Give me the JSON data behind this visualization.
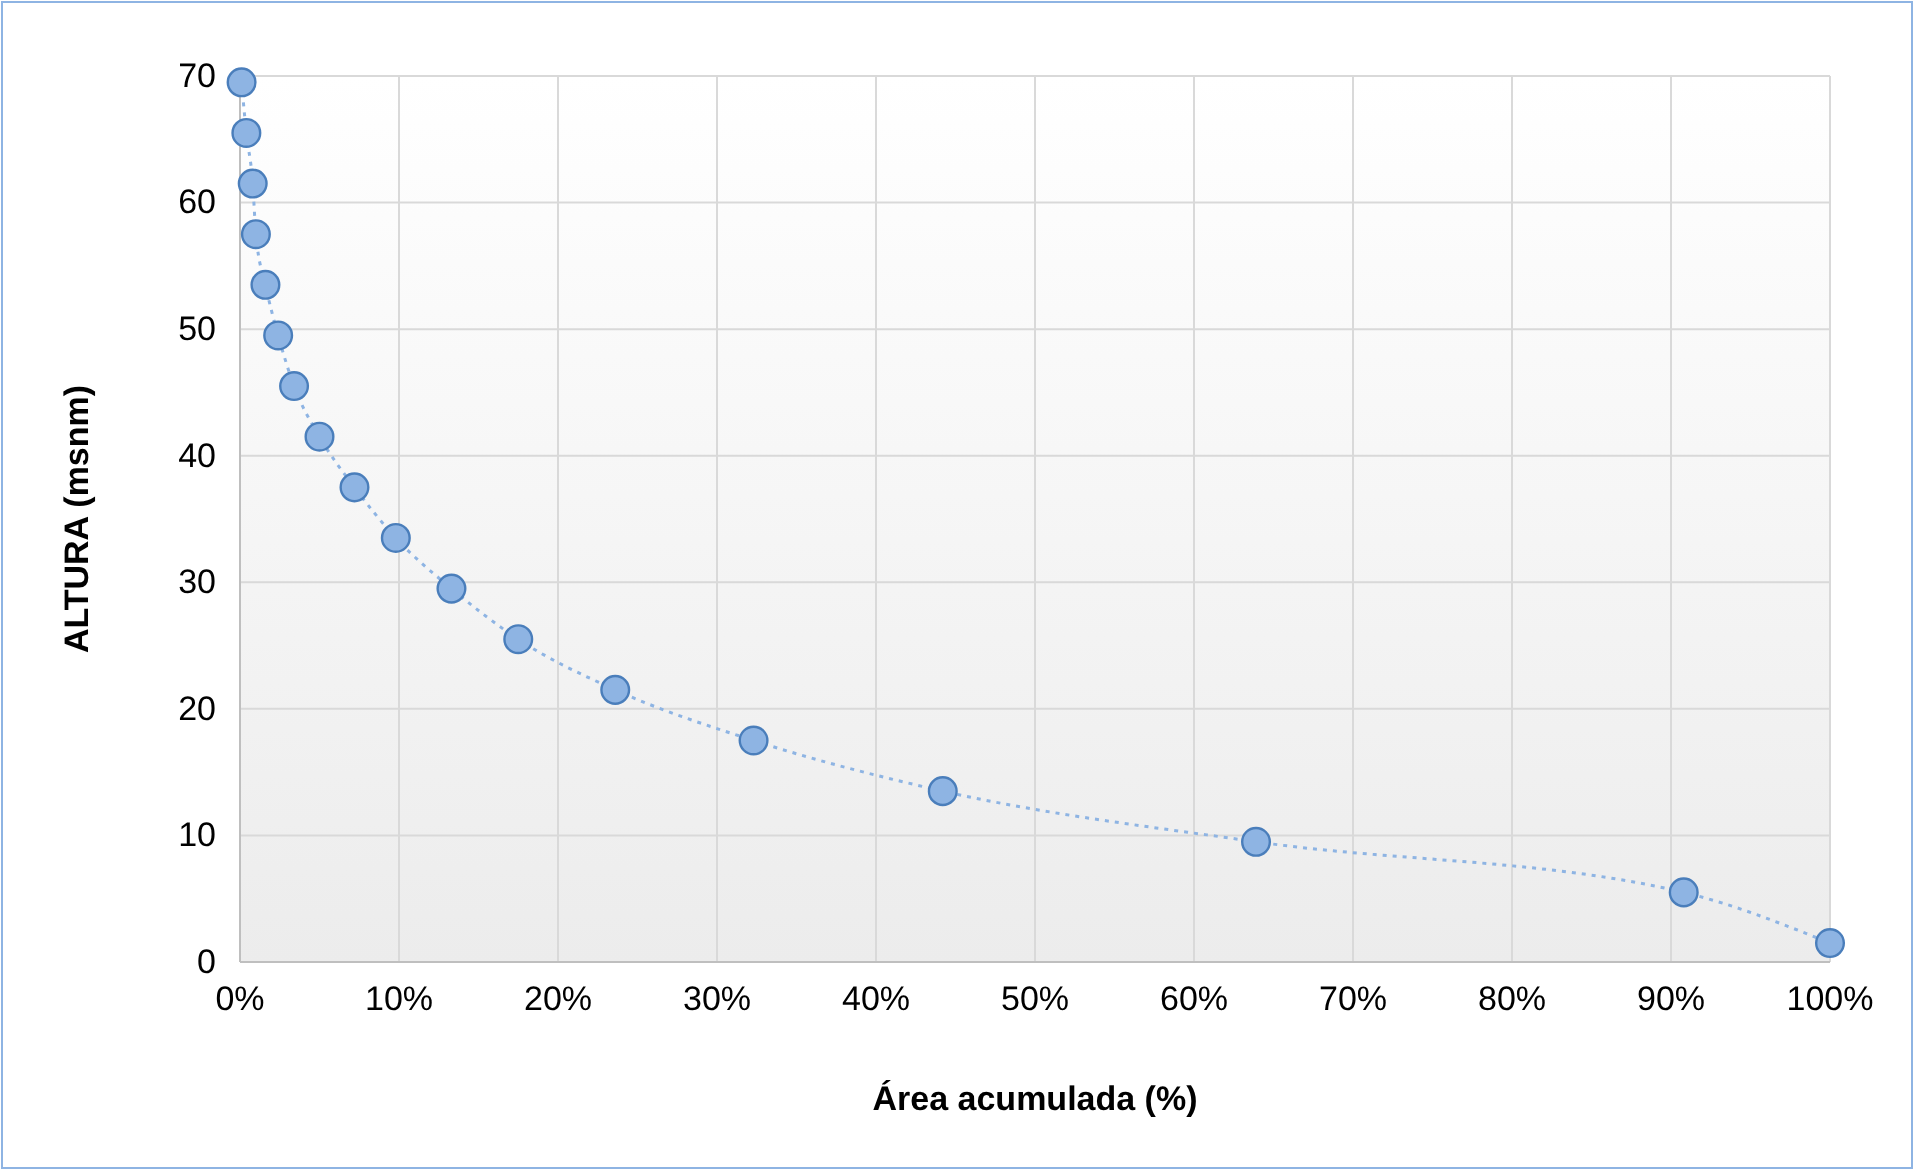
{
  "chart_data": {
    "type": "line",
    "xlabel": "Área acumulada (%)",
    "ylabel": "ALTURA (msnm)",
    "x": [
      0.1,
      0.4,
      0.8,
      1.0,
      1.6,
      2.4,
      3.4,
      5.0,
      7.2,
      9.8,
      13.3,
      17.5,
      23.6,
      32.3,
      44.2,
      63.9,
      90.8,
      100
    ],
    "series": [
      {
        "color": "#8eb4e3",
        "values": [
          69.5,
          65.5,
          61.5,
          57.5,
          53.5,
          49.5,
          45.5,
          41.5,
          37.5,
          33.5,
          29.5,
          25.5,
          21.5,
          17.5,
          13.5,
          9.5,
          5.5,
          1.5
        ]
      }
    ],
    "xlim": [
      0,
      100
    ],
    "ylim": [
      0,
      70
    ],
    "xticks": [
      {
        "value": 0,
        "label": "0%"
      },
      {
        "value": 10,
        "label": "10%"
      },
      {
        "value": 20,
        "label": "20%"
      },
      {
        "value": 30,
        "label": "30%"
      },
      {
        "value": 40,
        "label": "40%"
      },
      {
        "value": 50,
        "label": "50%"
      },
      {
        "value": 60,
        "label": "60%"
      },
      {
        "value": 70,
        "label": "70%"
      },
      {
        "value": 80,
        "label": "80%"
      },
      {
        "value": 90,
        "label": "90%"
      },
      {
        "value": 100,
        "label": "100%"
      }
    ],
    "yticks": [
      0,
      10,
      20,
      30,
      40,
      50,
      60,
      70
    ],
    "grid": true,
    "marker": "circle",
    "line_style": "dotted"
  }
}
